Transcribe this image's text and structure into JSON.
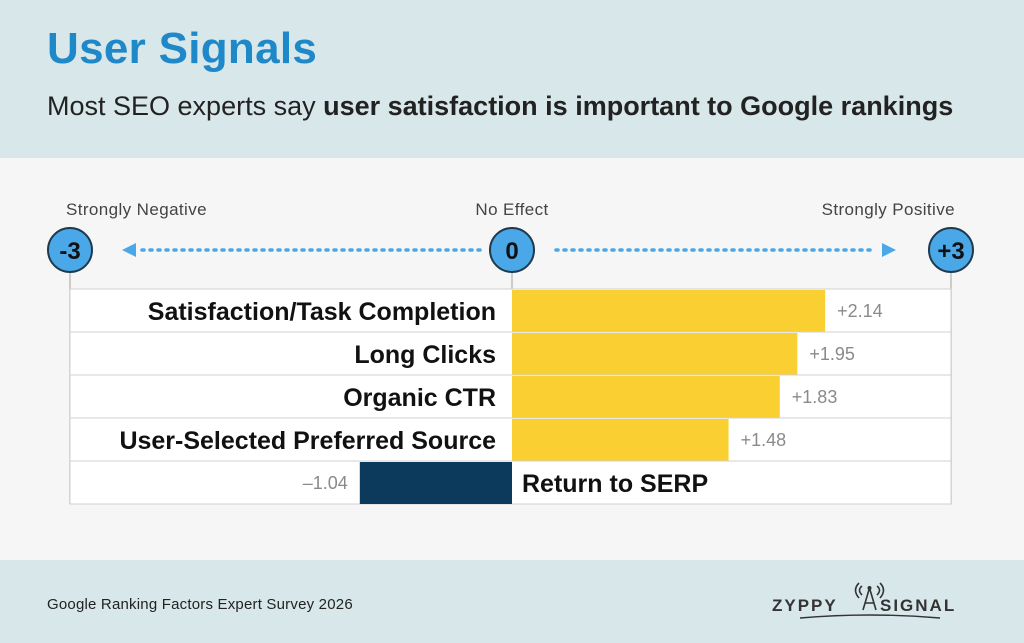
{
  "header": {
    "title": "User Signals",
    "subtitle_plain": "Most SEO experts say ",
    "subtitle_bold": "user satisfaction is important to Google rankings"
  },
  "footer": {
    "source": "Google Ranking Factors Expert Survey 2026",
    "logo_text_left": "ZYPPY",
    "logo_text_right": "SIGNAL"
  },
  "colors": {
    "positive_bar": "#f9cf31",
    "negative_bar": "#0c3a5c",
    "accent": "#1e88c9",
    "marker_fill": "#4aa8e8",
    "arrow": "#4aa8e8"
  },
  "chart_data": {
    "type": "bar",
    "orientation": "horizontal",
    "xlim": [
      -3,
      3
    ],
    "scale_labels": {
      "min_text": "Strongly Negative",
      "mid_text": "No Effect",
      "max_text": "Strongly Positive",
      "min_value": "-3",
      "mid_value": "0",
      "max_value": "+3"
    },
    "categories": [
      "Satisfaction/Task Completion",
      "Long Clicks",
      "Organic CTR",
      "User-Selected Preferred Source",
      "Return to SERP"
    ],
    "values": [
      2.14,
      1.95,
      1.83,
      1.48,
      -1.04
    ],
    "value_labels": [
      "+2.14",
      "+1.95",
      "+1.83",
      "+1.48",
      "–1.04"
    ]
  }
}
